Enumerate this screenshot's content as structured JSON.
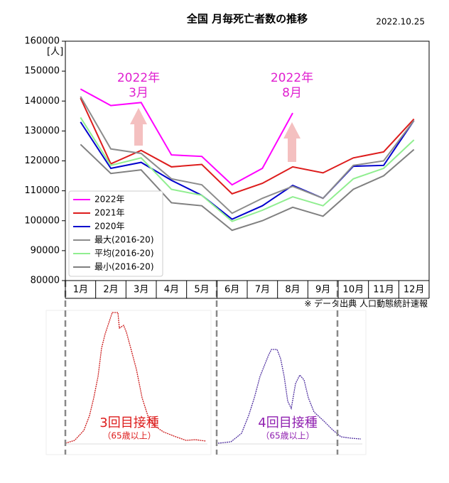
{
  "chart_data": {
    "type": "line",
    "title": "全国 月毎死亡者数の推移",
    "date": "2022.10.25",
    "y_label": "[人]",
    "source": "※ データ出典 人口動態統計速報",
    "categories": [
      "1月",
      "2月",
      "3月",
      "4月",
      "5月",
      "6月",
      "7月",
      "8月",
      "9月",
      "10月",
      "11月",
      "12月"
    ],
    "ylim": [
      80000,
      160000
    ],
    "yticks": [
      80000,
      90000,
      100000,
      110000,
      120000,
      130000,
      140000,
      150000,
      160000
    ],
    "legend": "lower left",
    "series": [
      {
        "name": "2022年",
        "color": "#ff00ff",
        "values": [
          144000,
          138500,
          139500,
          122000,
          121500,
          112000,
          117500,
          136000,
          null,
          null,
          null,
          null
        ]
      },
      {
        "name": "2021年",
        "color": "#dd1c1c",
        "values": [
          141000,
          119000,
          123500,
          118000,
          118800,
          109000,
          112500,
          118000,
          116000,
          121000,
          123000,
          134000
        ]
      },
      {
        "name": "2020年",
        "color": "#0000cc",
        "values": [
          133000,
          117500,
          119500,
          113500,
          108500,
          100500,
          105000,
          111800,
          107500,
          118200,
          118500,
          133500
        ]
      },
      {
        "name": "最大(2016-20)",
        "color": "#8c8c8c",
        "values": [
          141500,
          124000,
          122500,
          114000,
          112000,
          102500,
          107500,
          111500,
          107500,
          118500,
          120000,
          133500
        ]
      },
      {
        "name": "平均(2016-20)",
        "color": "#90ee90",
        "values": [
          134500,
          118500,
          121000,
          110500,
          108500,
          99800,
          103500,
          108000,
          105000,
          114000,
          117500,
          127000
        ]
      },
      {
        "name": "最小(2016-20)",
        "color": "#808080",
        "values": [
          125500,
          115800,
          117000,
          106000,
          105000,
          96800,
          100000,
          104500,
          101500,
          110500,
          115000,
          123800
        ]
      }
    ],
    "annotations": [
      {
        "lines": [
          "2022年",
          "3月"
        ],
        "color": "#e020d0"
      },
      {
        "lines": [
          "2022年",
          "8月"
        ],
        "color": "#e020d0"
      }
    ],
    "vaccinations": [
      {
        "label": "3回目接種",
        "note": "（65歳以上）",
        "color": "#dd1c1c"
      },
      {
        "label": "4回目接種",
        "note": "（65歳以上）",
        "color": "#9020b0"
      }
    ]
  }
}
